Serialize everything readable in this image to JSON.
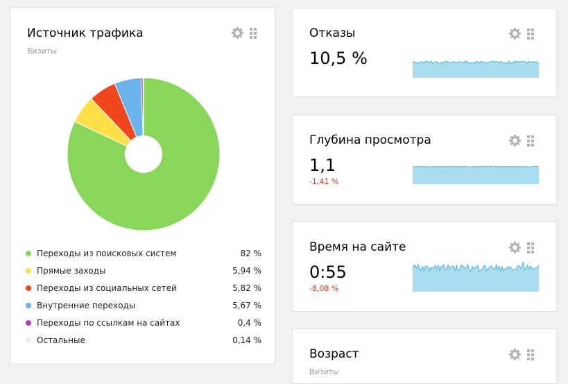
{
  "traffic": {
    "title": "Источник трафика",
    "subtitle": "Визиты",
    "items": [
      {
        "label": "Переходы из поисковых систем",
        "value": "82 %",
        "pct": 82,
        "color": "#8ad65a"
      },
      {
        "label": "Прямые заходы",
        "value": "5,94 %",
        "pct": 5.94,
        "color": "#fde047"
      },
      {
        "label": "Переходы из социальных сетей",
        "value": "5,82 %",
        "pct": 5.82,
        "color": "#f2461f"
      },
      {
        "label": "Внутренние переходы",
        "value": "5,67 %",
        "pct": 5.67,
        "color": "#6bb3ec"
      },
      {
        "label": "Переходы по ссылкам на сайтах",
        "value": "0,4 %",
        "pct": 0.4,
        "color": "#b03ac0"
      },
      {
        "label": "Остальные",
        "value": "0,14 %",
        "pct": 0.14,
        "color": "#eeeeee"
      }
    ]
  },
  "bounce": {
    "title": "Отказы",
    "value": "10,5 %"
  },
  "depth": {
    "title": "Глубина просмотра",
    "value": "1,1",
    "delta": "-1,41 %"
  },
  "time": {
    "title": "Время на сайте",
    "value": "0:55",
    "delta": "-8,08 %"
  },
  "age": {
    "title": "Возраст",
    "subtitle": "Визиты"
  },
  "colors": {
    "spark_fill": "#a8dcee",
    "spark_line": "#4fb6d9",
    "negative": "#e0301e"
  },
  "icons": {
    "settings": "gear-icon",
    "drag": "drag-handle-icon"
  }
}
